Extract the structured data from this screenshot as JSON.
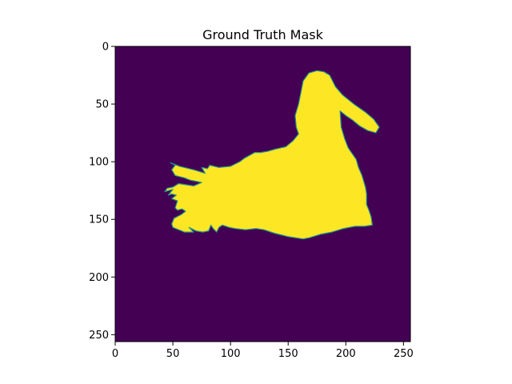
{
  "chart_data": {
    "type": "heatmap",
    "title": "Ground Truth Mask",
    "xlabel": "",
    "ylabel": "",
    "xlim": [
      0,
      256
    ],
    "ylim": [
      256,
      0
    ],
    "x_ticks": [
      "0",
      "50",
      "100",
      "150",
      "200",
      "250"
    ],
    "y_ticks": [
      "0",
      "50",
      "100",
      "150",
      "200",
      "250"
    ],
    "colormap": "viridis",
    "colors": {
      "background": "#440154",
      "foreground": "#fde725",
      "edge": "#21918c"
    },
    "mask_outline": [
      [
        163,
        167
      ],
      [
        150,
        165
      ],
      [
        138,
        162
      ],
      [
        129,
        159
      ],
      [
        122,
        158
      ],
      [
        113,
        159
      ],
      [
        104,
        158
      ],
      [
        99,
        157
      ],
      [
        93,
        155
      ],
      [
        90,
        157
      ],
      [
        88,
        161
      ],
      [
        85,
        158
      ],
      [
        83,
        155
      ],
      [
        81,
        160
      ],
      [
        76,
        161
      ],
      [
        70,
        160
      ],
      [
        66,
        158
      ],
      [
        64,
        157
      ],
      [
        68,
        161
      ],
      [
        60,
        161
      ],
      [
        55,
        159
      ],
      [
        50,
        157
      ],
      [
        49,
        154
      ],
      [
        51,
        149
      ],
      [
        57,
        146
      ],
      [
        61,
        143
      ],
      [
        58,
        141
      ],
      [
        54,
        142
      ],
      [
        52,
        140
      ],
      [
        54,
        134
      ],
      [
        49,
        132
      ],
      [
        53,
        129
      ],
      [
        49,
        128
      ],
      [
        46,
        129
      ],
      [
        50,
        124
      ],
      [
        43,
        126
      ],
      [
        45,
        123
      ],
      [
        50,
        122
      ],
      [
        55,
        119
      ],
      [
        68,
        121
      ],
      [
        75,
        118
      ],
      [
        70,
        117
      ],
      [
        65,
        116
      ],
      [
        60,
        114
      ],
      [
        52,
        112
      ],
      [
        49,
        107
      ],
      [
        52,
        103
      ],
      [
        48,
        101
      ],
      [
        56,
        104
      ],
      [
        68,
        107
      ],
      [
        78,
        110
      ],
      [
        75,
        105
      ],
      [
        80,
        106
      ],
      [
        82,
        103
      ],
      [
        86,
        104
      ],
      [
        90,
        105
      ],
      [
        100,
        104
      ],
      [
        108,
        100
      ],
      [
        112,
        97
      ],
      [
        121,
        92
      ],
      [
        126,
        92
      ],
      [
        132,
        91
      ],
      [
        139,
        89
      ],
      [
        148,
        87
      ],
      [
        154,
        82
      ],
      [
        159,
        76
      ],
      [
        157,
        70
      ],
      [
        156,
        60
      ],
      [
        159,
        50
      ],
      [
        161,
        40
      ],
      [
        163,
        30
      ],
      [
        168,
        23
      ],
      [
        175,
        21
      ],
      [
        181,
        22
      ],
      [
        186,
        25
      ],
      [
        191,
        35
      ],
      [
        197,
        42
      ],
      [
        207,
        50
      ],
      [
        217,
        57
      ],
      [
        224,
        63
      ],
      [
        229,
        70
      ],
      [
        226,
        75
      ],
      [
        219,
        73
      ],
      [
        212,
        69
      ],
      [
        206,
        64
      ],
      [
        200,
        60
      ],
      [
        195,
        56
      ],
      [
        196,
        70
      ],
      [
        199,
        80
      ],
      [
        202,
        88
      ],
      [
        209,
        98
      ],
      [
        211,
        105
      ],
      [
        214,
        112
      ],
      [
        217,
        122
      ],
      [
        218,
        128
      ],
      [
        218,
        137
      ],
      [
        220,
        142
      ],
      [
        222,
        148
      ],
      [
        223,
        155
      ],
      [
        216,
        156
      ],
      [
        208,
        156
      ],
      [
        198,
        158
      ],
      [
        188,
        161
      ],
      [
        178,
        163
      ],
      [
        168,
        166
      ]
    ]
  }
}
